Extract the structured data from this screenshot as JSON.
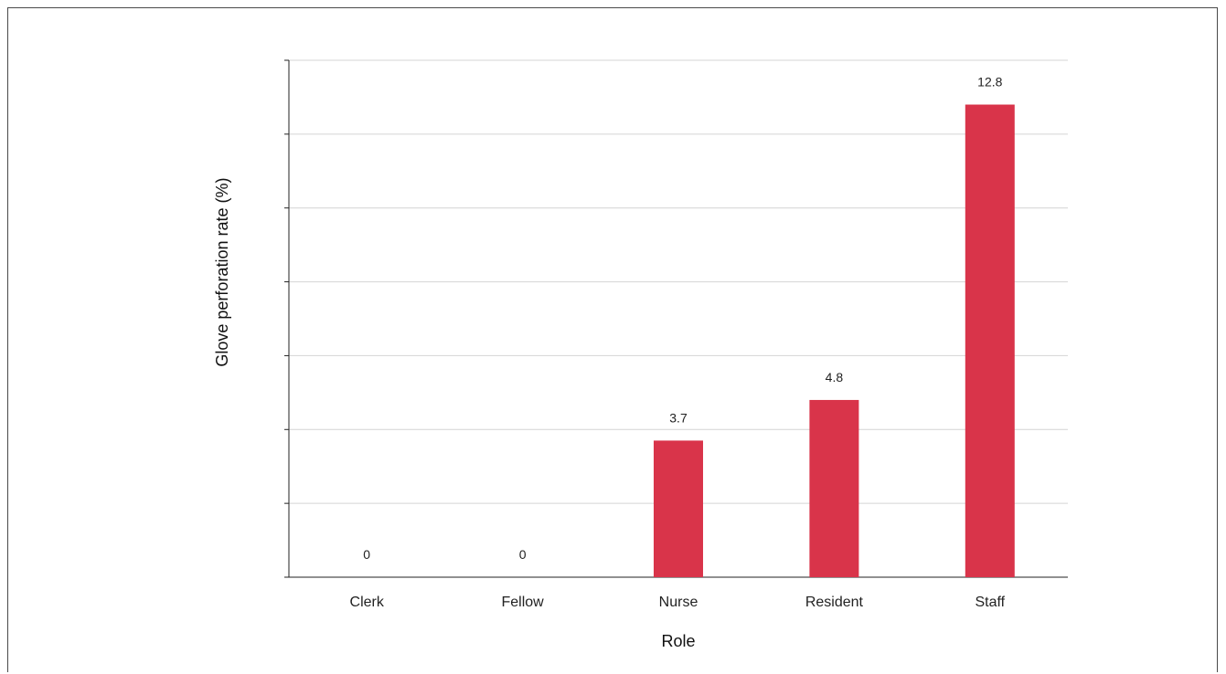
{
  "chart_data": {
    "type": "bar",
    "title": "",
    "xlabel": "Role",
    "ylabel": "Glove perforation rate (%)",
    "categories": [
      "Clerk",
      "Fellow",
      "Nurse",
      "Resident",
      "Staff"
    ],
    "values": [
      0,
      0,
      3.7,
      4.8,
      12.8
    ],
    "data_labels": [
      "0",
      "0",
      "3.7",
      "4.8",
      "12.8"
    ],
    "ylim": [
      0,
      14
    ],
    "y_tick_step": 2,
    "y_tick_labels_shown": false,
    "grid": true,
    "legend": "none",
    "bar_color": "#d9344a",
    "grid_color": "#d4d4d4",
    "axis_color": "#222222"
  }
}
